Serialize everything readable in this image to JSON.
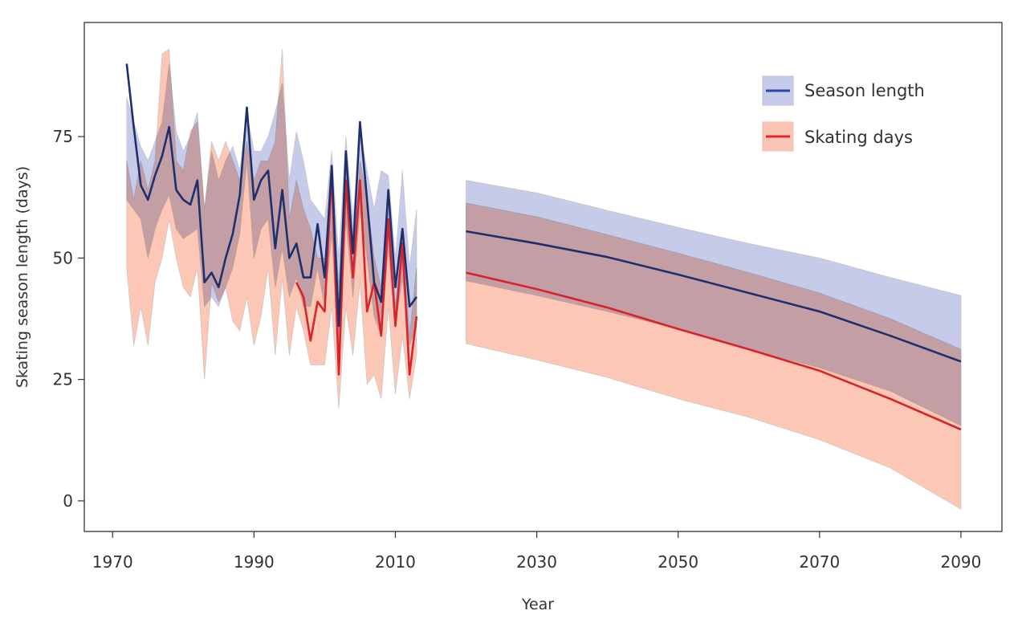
{
  "chart_data": {
    "type": "line",
    "title": "",
    "xlabel": "Year",
    "ylabel": "Skating season length (days)",
    "xlim": [
      1966,
      2095.8
    ],
    "ylim": [
      -6.3,
      98.5
    ],
    "xticks": [
      1970,
      1990,
      2010,
      2030,
      2050,
      2070,
      2090
    ],
    "yticks": [
      0,
      25,
      50,
      75
    ],
    "grid": false,
    "legend_position": "top-right",
    "colors": {
      "season_line": "#1f2f6e",
      "season_band": "#c5cbe8",
      "skating_line": "#d8232a",
      "skating_band": "#fdc7b5"
    },
    "legend": [
      {
        "label": "Season length",
        "series": "season"
      },
      {
        "label": "Skating days",
        "series": "skating"
      }
    ],
    "historical": {
      "x": [
        1972,
        1973,
        1974,
        1975,
        1976,
        1977,
        1978,
        1979,
        1980,
        1981,
        1982,
        1983,
        1984,
        1985,
        1986,
        1987,
        1988,
        1989,
        1990,
        1991,
        1992,
        1993,
        1994,
        1995,
        1996,
        1997,
        1998,
        1999,
        2000,
        2001,
        2002,
        2003,
        2004,
        2005,
        2006,
        2007,
        2008,
        2009,
        2010,
        2011,
        2012,
        2013
      ],
      "season": [
        90,
        77,
        65,
        62,
        67,
        71,
        77,
        64,
        62,
        61,
        66,
        45,
        47,
        44,
        50,
        55,
        63,
        81,
        62,
        66,
        68,
        52,
        64,
        50,
        53,
        46,
        46,
        57,
        46,
        69,
        36,
        72,
        51,
        78,
        62,
        45,
        41,
        64,
        44,
        56,
        40,
        42
      ],
      "season_upper": [
        83,
        78,
        73,
        70,
        74,
        78,
        90,
        76,
        72,
        75,
        80,
        60,
        72,
        66,
        70,
        73,
        68,
        80,
        72,
        72,
        75,
        80,
        86,
        66,
        76,
        70,
        62,
        60,
        58,
        72,
        50,
        75,
        58,
        76,
        68,
        60,
        68,
        67,
        50,
        68,
        48,
        60
      ],
      "season_lower": [
        62,
        60,
        58,
        50,
        56,
        60,
        63,
        56,
        54,
        55,
        56,
        40,
        42,
        40,
        44,
        48,
        55,
        70,
        50,
        56,
        58,
        44,
        52,
        42,
        46,
        40,
        40,
        48,
        40,
        55,
        28,
        58,
        42,
        60,
        50,
        38,
        34,
        52,
        36,
        46,
        32,
        36
      ],
      "skating": [
        null,
        null,
        null,
        null,
        null,
        null,
        null,
        null,
        null,
        null,
        null,
        null,
        null,
        null,
        null,
        null,
        null,
        null,
        null,
        null,
        null,
        null,
        null,
        null,
        45,
        42,
        33,
        41,
        39,
        68,
        26,
        66,
        46,
        66,
        39,
        45,
        34,
        58,
        36,
        53,
        26,
        38
      ],
      "skating_upper": [
        70,
        62,
        70,
        64,
        70,
        92,
        93,
        70,
        68,
        76,
        78,
        60,
        74,
        70,
        74,
        70,
        66,
        74,
        66,
        70,
        70,
        74,
        93,
        58,
        66,
        60,
        56,
        50,
        50,
        66,
        44,
        70,
        48,
        70,
        62,
        50,
        44,
        60,
        40,
        54,
        34,
        48
      ],
      "skating_lower": [
        48,
        32,
        40,
        32,
        45,
        50,
        58,
        50,
        44,
        42,
        48,
        25,
        45,
        41,
        44,
        37,
        35,
        42,
        32,
        38,
        48,
        30,
        46,
        30,
        40,
        35,
        28,
        28,
        28,
        40,
        19,
        40,
        30,
        45,
        24,
        26,
        21,
        40,
        22,
        34,
        21,
        30
      ]
    },
    "projection": {
      "x": [
        2020,
        2030,
        2040,
        2050,
        2060,
        2070,
        2080,
        2090
      ],
      "season": [
        55.5,
        53,
        50.2,
        46.6,
        42.8,
        39,
        34,
        28.7
      ],
      "season_upper": [
        66,
        63.4,
        59.8,
        56.3,
        53,
        50,
        46,
        42.3
      ],
      "season_lower": [
        45.3,
        42.3,
        39,
        35.4,
        31.2,
        27.4,
        22.6,
        15.5
      ],
      "skating": [
        47,
        43.6,
        39.8,
        35.4,
        31.2,
        26.8,
        21,
        14.7
      ],
      "skating_upper": [
        61.3,
        58.5,
        54.8,
        51,
        47,
        42.8,
        37.5,
        31.2
      ],
      "skating_lower": [
        32.4,
        29,
        25.4,
        21,
        17.2,
        12.6,
        6.8,
        -1.7
      ]
    }
  }
}
